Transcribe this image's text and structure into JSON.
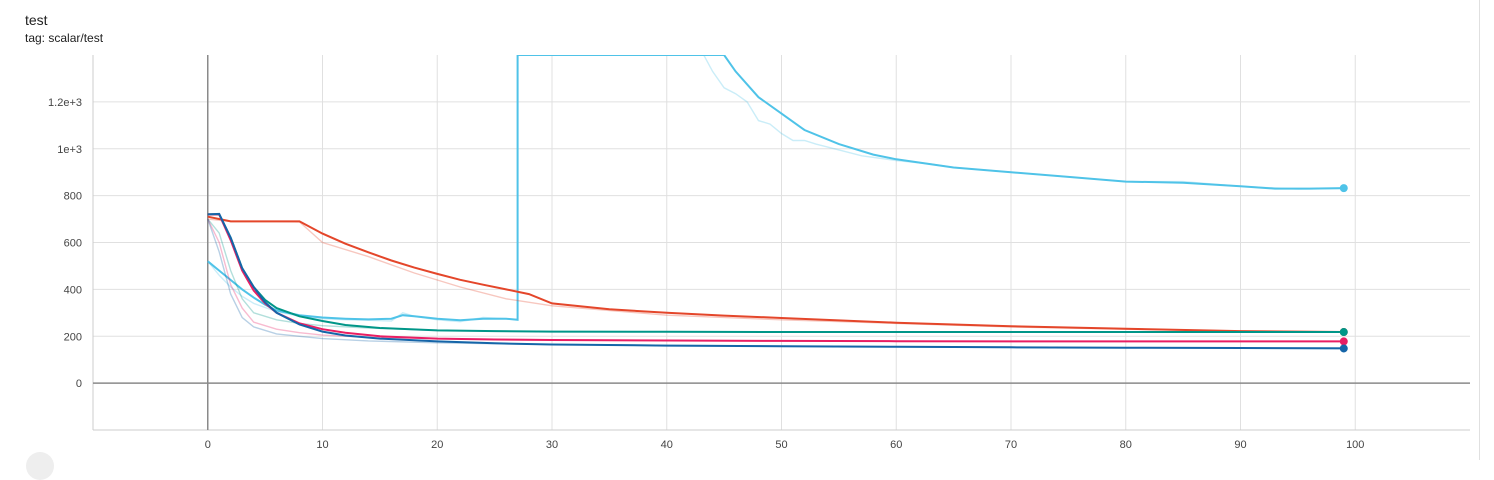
{
  "card": {
    "title": "test",
    "tag": "tag: scalar/test"
  },
  "chart_data": {
    "type": "line",
    "title": "test",
    "xlabel": "",
    "ylabel": "",
    "xlim": [
      -10,
      110
    ],
    "ylim": [
      -200,
      1400
    ],
    "x_ticks": [
      0,
      10,
      20,
      30,
      40,
      50,
      60,
      70,
      80,
      90,
      100
    ],
    "y_ticks": [
      0,
      200,
      400,
      600,
      800,
      1000,
      1200
    ],
    "y_tick_labels": [
      "0",
      "200",
      "400",
      "600",
      "800",
      "1e+3",
      "1.2e+3"
    ],
    "grid": true,
    "series": [
      {
        "color": "#4fc3e8",
        "raw_x": [
          0,
          1,
          2,
          3,
          4,
          6,
          8,
          10,
          12,
          14,
          16,
          17,
          18,
          20,
          22,
          24,
          26,
          27
        ],
        "raw_y": [
          520,
          460,
          410,
          370,
          340,
          305,
          285,
          275,
          270,
          268,
          265,
          300,
          285,
          270,
          262,
          280,
          275,
          270
        ],
        "raw2_x": [
          43,
          44,
          45,
          46,
          47,
          48,
          49,
          50,
          51,
          52,
          53,
          55,
          57,
          60,
          63,
          65,
          70,
          75,
          80,
          85,
          90,
          95,
          99
        ],
        "raw2_y": [
          1420,
          1330,
          1260,
          1235,
          1200,
          1120,
          1105,
          1065,
          1035,
          1035,
          1020,
          995,
          970,
          950,
          935,
          920,
          900,
          880,
          860,
          860,
          840,
          828,
          830
        ],
        "x": [
          0,
          1,
          2,
          3,
          4,
          5,
          6,
          8,
          10,
          12,
          14,
          16,
          17,
          18,
          20,
          22,
          24,
          26,
          27,
          27,
          45,
          46,
          48,
          50,
          52,
          55,
          58,
          60,
          65,
          70,
          75,
          80,
          85,
          90,
          93,
          96,
          99
        ],
        "y": [
          520,
          480,
          440,
          400,
          365,
          335,
          310,
          290,
          280,
          275,
          272,
          275,
          290,
          285,
          275,
          268,
          275,
          275,
          270,
          1400,
          1400,
          1330,
          1220,
          1150,
          1080,
          1020,
          975,
          955,
          920,
          900,
          880,
          860,
          855,
          840,
          830,
          830,
          832
        ]
      },
      {
        "color": "#e4462a",
        "raw_x": [
          0,
          2,
          4,
          6,
          8,
          10,
          14,
          18,
          22,
          26,
          30,
          40,
          50,
          60,
          70,
          80,
          90,
          99
        ],
        "raw_y": [
          700,
          690,
          690,
          690,
          688,
          600,
          540,
          470,
          410,
          360,
          330,
          290,
          270,
          255,
          240,
          230,
          222,
          218
        ],
        "x": [
          0,
          2,
          4,
          6,
          8,
          10,
          12,
          14,
          16,
          18,
          20,
          22,
          24,
          26,
          28,
          30,
          35,
          40,
          45,
          50,
          60,
          70,
          80,
          90,
          99
        ],
        "y": [
          710,
          690,
          690,
          690,
          690,
          638,
          595,
          558,
          523,
          493,
          466,
          441,
          420,
          400,
          380,
          340,
          315,
          300,
          288,
          278,
          258,
          243,
          232,
          222,
          218
        ]
      },
      {
        "color": "#009688",
        "raw_x": [
          0,
          1,
          2,
          3,
          4,
          6,
          8,
          10,
          14,
          20,
          30,
          50,
          70,
          99
        ],
        "raw_y": [
          700,
          640,
          480,
          360,
          300,
          270,
          255,
          245,
          235,
          225,
          220,
          218,
          218,
          218
        ],
        "x": [
          0,
          1,
          2,
          3,
          4,
          5,
          6,
          8,
          10,
          12,
          15,
          20,
          25,
          30,
          40,
          50,
          60,
          70,
          80,
          90,
          99
        ],
        "y": [
          720,
          720,
          620,
          490,
          410,
          355,
          320,
          285,
          265,
          248,
          235,
          225,
          222,
          220,
          219,
          218,
          218,
          218,
          218,
          218,
          218
        ]
      },
      {
        "color": "#e91e63",
        "raw_x": [
          0,
          1,
          2,
          3,
          4,
          6,
          8,
          10,
          14,
          20,
          30,
          50,
          70,
          99
        ],
        "raw_y": [
          700,
          600,
          420,
          320,
          260,
          230,
          215,
          205,
          195,
          190,
          185,
          180,
          178,
          178
        ],
        "x": [
          0,
          1,
          2,
          3,
          4,
          5,
          6,
          8,
          10,
          12,
          15,
          20,
          25,
          30,
          40,
          50,
          60,
          70,
          80,
          90,
          99
        ],
        "y": [
          720,
          720,
          610,
          480,
          395,
          340,
          300,
          255,
          230,
          215,
          200,
          190,
          186,
          184,
          182,
          180,
          179,
          178,
          178,
          178,
          178
        ]
      },
      {
        "color": "#1565a8",
        "raw_x": [
          0,
          1,
          2,
          3,
          4,
          6,
          8,
          10,
          14,
          20,
          30,
          50,
          70,
          99
        ],
        "raw_y": [
          700,
          560,
          380,
          280,
          240,
          210,
          200,
          190,
          180,
          172,
          165,
          158,
          152,
          150
        ],
        "x": [
          0,
          1,
          2,
          3,
          4,
          5,
          6,
          8,
          10,
          12,
          15,
          20,
          25,
          30,
          40,
          50,
          60,
          70,
          80,
          90,
          99
        ],
        "y": [
          720,
          722,
          620,
          490,
          410,
          345,
          300,
          250,
          220,
          203,
          190,
          178,
          170,
          165,
          160,
          157,
          155,
          153,
          151,
          150,
          148
        ]
      }
    ]
  }
}
